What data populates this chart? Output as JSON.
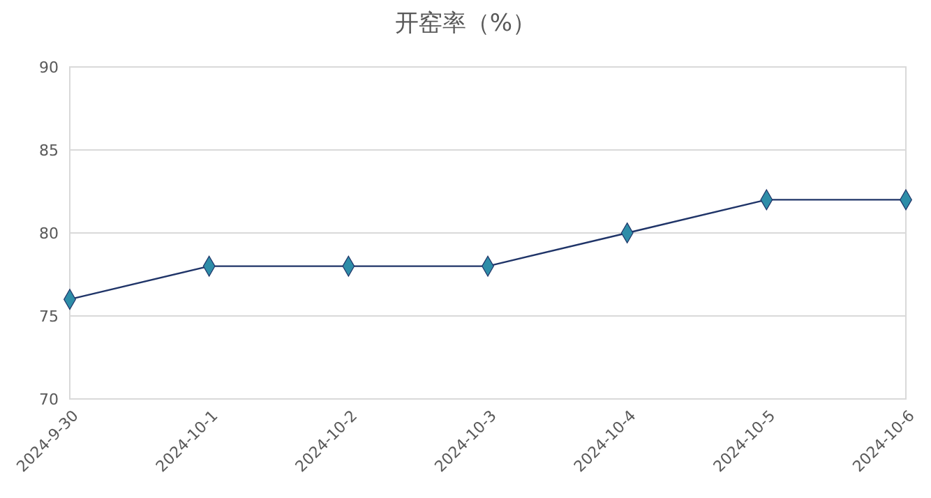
{
  "chart_data": {
    "type": "line",
    "title": "开窑率（%）",
    "categories": [
      "2024-9-30",
      "2024-10-1",
      "2024-10-2",
      "2024-10-3",
      "2024-10-4",
      "2024-10-5",
      "2024-10-6"
    ],
    "series": [
      {
        "color": "#1f3468",
        "values": [
          76,
          78,
          78,
          78,
          80,
          82,
          82
        ]
      }
    ],
    "ylim": [
      70,
      90
    ],
    "yticks": [
      70,
      75,
      80,
      85,
      90
    ],
    "grid": "y",
    "marker": "diamond",
    "line_style": "solid"
  }
}
